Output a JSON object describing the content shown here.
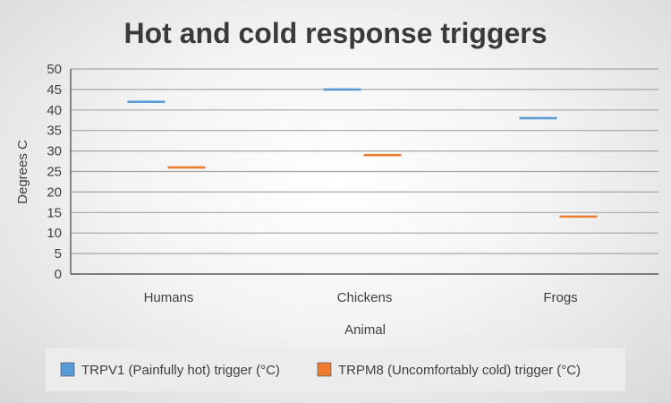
{
  "chart_data": {
    "type": "scatter",
    "title": "Hot and cold response triggers",
    "xlabel": "Animal",
    "ylabel": "Degrees C",
    "categories": [
      "Humans",
      "Chickens",
      "Frogs"
    ],
    "ylim": [
      0,
      50
    ],
    "yticks": [
      0,
      5,
      10,
      15,
      20,
      25,
      30,
      35,
      40,
      45,
      50
    ],
    "grid": true,
    "legend_position": "bottom",
    "marker": "dash",
    "series": [
      {
        "name": "TRPV1 (Painfully hot) trigger (°C)",
        "color": "#5b9bd5",
        "values": [
          42,
          45,
          38
        ]
      },
      {
        "name": "TRPM8 (Uncomfortably cold) trigger (°C)",
        "color": "#ed7d31",
        "values": [
          26,
          29,
          14
        ]
      }
    ]
  }
}
